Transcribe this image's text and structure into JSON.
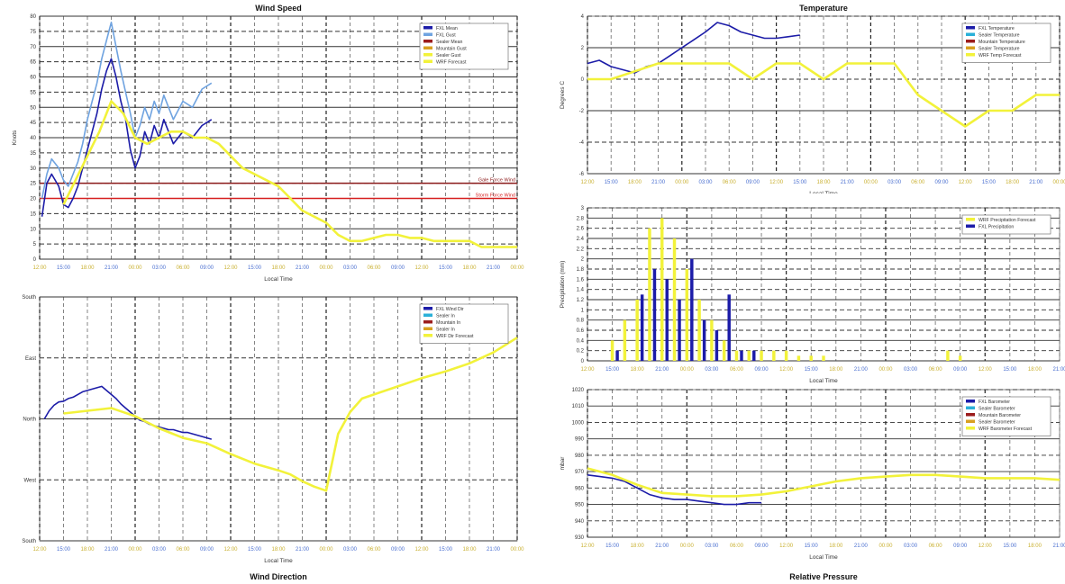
{
  "chart_data": [
    {
      "id": "wind_speed",
      "type": "line",
      "title": "Wind Speed",
      "xlabel": "Local Time",
      "ylabel": "Knots",
      "ylim": [
        0,
        80
      ],
      "yticks": [
        0,
        5,
        10,
        15,
        20,
        25,
        30,
        35,
        40,
        45,
        50,
        55,
        60,
        65,
        70,
        75,
        80
      ],
      "xtick_labels": [
        "12:00",
        "15:00",
        "18:00",
        "21:00",
        "00:00",
        "03:00",
        "06:00",
        "09:00",
        "12:00",
        "15:00",
        "18:00",
        "21:00",
        "00:00",
        "03:00",
        "06:00",
        "09:00",
        "12:00",
        "15:00",
        "18:00",
        "21:00",
        "00:00"
      ],
      "x_range": [
        0,
        20
      ],
      "legend": [
        "FXL Mean",
        "FXL Gust",
        "Sealer Mean",
        "Mountain Gust",
        "Sealer Gust",
        "WRF Forecast"
      ],
      "legend_position": "top-right",
      "thresholds": [
        {
          "label": "Gale Force Wind",
          "value": 25,
          "color": "#8b1a1a"
        },
        {
          "label": "Storm Force Wind",
          "value": 20,
          "color": "#d62020"
        }
      ],
      "series": [
        {
          "name": "FXL Gust",
          "color": "#6fa3e0",
          "x": [
            0.1,
            0.3,
            0.5,
            0.8,
            1.0,
            1.2,
            1.4,
            1.6,
            1.8,
            2.0,
            2.2,
            2.4,
            2.6,
            2.8,
            3.0,
            3.2,
            3.4,
            3.6,
            3.8,
            4.0,
            4.2,
            4.4,
            4.6,
            4.8,
            5.0,
            5.2,
            5.4,
            5.6,
            6.0,
            6.4,
            6.8,
            7.2
          ],
          "y": [
            20,
            28,
            33,
            30,
            26,
            24,
            28,
            32,
            38,
            46,
            52,
            58,
            66,
            72,
            78,
            70,
            62,
            55,
            48,
            40,
            44,
            50,
            46,
            52,
            48,
            54,
            50,
            46,
            52,
            50,
            56,
            58
          ]
        },
        {
          "name": "FXL Mean",
          "color": "#1c1ca8",
          "x": [
            0.1,
            0.3,
            0.5,
            0.8,
            1.0,
            1.2,
            1.4,
            1.6,
            1.8,
            2.0,
            2.2,
            2.4,
            2.6,
            2.8,
            3.0,
            3.2,
            3.4,
            3.6,
            3.8,
            4.0,
            4.2,
            4.4,
            4.6,
            4.8,
            5.0,
            5.2,
            5.4,
            5.6,
            6.0,
            6.4,
            6.8,
            7.2
          ],
          "y": [
            14,
            25,
            28,
            24,
            18,
            17,
            20,
            24,
            30,
            36,
            42,
            48,
            56,
            62,
            66,
            60,
            52,
            46,
            36,
            30,
            34,
            42,
            38,
            44,
            40,
            46,
            42,
            38,
            42,
            40,
            44,
            46
          ]
        },
        {
          "name": "WRF Forecast",
          "color": "#f2f23a",
          "x": [
            1.0,
            1.5,
            2.0,
            2.5,
            3.0,
            3.5,
            4.0,
            4.5,
            5.0,
            5.5,
            6.0,
            6.5,
            7.0,
            7.5,
            8.0,
            8.5,
            9.0,
            9.5,
            10.0,
            10.5,
            11.0,
            11.5,
            12.0,
            12.5,
            13.0,
            13.5,
            14.0,
            14.5,
            15.0,
            15.5,
            16.0,
            16.5,
            17.0,
            17.5,
            18.0,
            18.5,
            19.0,
            19.5,
            20.0
          ],
          "y": [
            18,
            26,
            34,
            42,
            52,
            48,
            40,
            38,
            40,
            42,
            42,
            40,
            40,
            38,
            34,
            30,
            28,
            26,
            24,
            20,
            16,
            14,
            12,
            8,
            6,
            6,
            7,
            8,
            8,
            7,
            7,
            6,
            6,
            6,
            6,
            4,
            4,
            4,
            4
          ]
        }
      ]
    },
    {
      "id": "wind_direction",
      "type": "line",
      "title": "Wind Direction",
      "xlabel": "Local Time",
      "ylim": [
        0,
        360
      ],
      "ytick_labels": [
        "South",
        "West",
        "North",
        "East",
        "South"
      ],
      "ytick_values": [
        0,
        90,
        180,
        270,
        360
      ],
      "xtick_labels": [
        "12:00",
        "15:00",
        "18:00",
        "21:00",
        "00:00",
        "03:00",
        "06:00",
        "09:00",
        "12:00",
        "15:00",
        "18:00",
        "21:00",
        "00:00",
        "03:00",
        "06:00",
        "09:00",
        "12:00",
        "15:00",
        "18:00",
        "21:00",
        "00:00"
      ],
      "x_range": [
        0,
        20
      ],
      "legend": [
        "FXL Wind Dir",
        "Sealer In",
        "Mountain In",
        "Sealer In",
        "WRF Dir Forecast"
      ],
      "legend_position": "top-right",
      "series": [
        {
          "name": "FXL Wind Dir",
          "color": "#1c1ca8",
          "x": [
            0.2,
            0.4,
            0.6,
            0.8,
            1.0,
            1.2,
            1.4,
            1.6,
            1.8,
            2.0,
            2.2,
            2.4,
            2.6,
            2.8,
            3.0,
            3.2,
            3.4,
            3.6,
            3.8,
            4.0,
            4.2,
            4.4,
            4.6,
            4.8,
            5.0,
            5.2,
            5.4,
            5.6,
            5.8,
            6.0,
            6.2,
            6.4,
            6.6,
            6.8,
            7.0,
            7.2
          ],
          "y": [
            180,
            192,
            200,
            205,
            206,
            210,
            212,
            216,
            220,
            222,
            224,
            226,
            228,
            222,
            216,
            210,
            202,
            196,
            190,
            184,
            178,
            176,
            172,
            170,
            168,
            166,
            164,
            164,
            162,
            160,
            160,
            158,
            156,
            154,
            152,
            150
          ]
        },
        {
          "name": "WRF Dir Forecast",
          "color": "#f2f23a",
          "x": [
            1.0,
            2.0,
            3.0,
            4.0,
            5.0,
            6.0,
            7.0,
            8.0,
            9.0,
            10.0,
            10.5,
            11.0,
            11.5,
            12.0,
            12.5,
            13.0,
            13.5,
            14.0,
            15.0,
            16.0,
            17.0,
            18.0,
            19.0,
            20.0
          ],
          "y": [
            188,
            192,
            196,
            184,
            166,
            152,
            144,
            128,
            114,
            104,
            98,
            88,
            80,
            74,
            158,
            190,
            210,
            216,
            228,
            240,
            250,
            262,
            278,
            300
          ]
        }
      ]
    },
    {
      "id": "temperature",
      "type": "line",
      "title": "Temperature",
      "xlabel": "Local Time",
      "ylabel": "Degrees C",
      "ylim": [
        -6,
        4
      ],
      "yticks": [
        -6,
        -4,
        -2,
        0,
        2,
        4
      ],
      "xtick_labels": [
        "12:00",
        "15:00",
        "18:00",
        "21:00",
        "00:00",
        "03:00",
        "06:00",
        "09:00",
        "12:00",
        "15:00",
        "18:00",
        "21:00",
        "00:00",
        "03:00",
        "06:00",
        "09:00",
        "12:00",
        "15:00",
        "18:00",
        "21:00",
        "00:00"
      ],
      "x_range": [
        0,
        20
      ],
      "legend": [
        "FXL Temperature",
        "Sealer Temperature",
        "Mountain Temperature",
        "Sealer Temperature",
        "WRF Temp Forecast"
      ],
      "legend_position": "top-right",
      "series": [
        {
          "name": "FXL Temperature",
          "color": "#1c1ca8",
          "x": [
            0.0,
            0.5,
            1.0,
            1.5,
            2.0,
            2.5,
            3.0,
            3.5,
            4.0,
            4.5,
            5.0,
            5.5,
            6.0,
            6.5,
            7.0,
            7.5,
            8.0,
            8.5,
            9.0
          ],
          "y": [
            1.0,
            1.2,
            0.8,
            0.6,
            0.4,
            0.8,
            1.0,
            1.5,
            2.0,
            2.5,
            3.0,
            3.6,
            3.4,
            3.0,
            2.8,
            2.6,
            2.6,
            2.7,
            2.8
          ]
        },
        {
          "name": "WRF Temp Forecast",
          "color": "#f2f23a",
          "x": [
            0.0,
            1.0,
            2.0,
            3.0,
            4.0,
            5.0,
            6.0,
            7.0,
            8.0,
            9.0,
            10.0,
            11.0,
            12.0,
            13.0,
            14.0,
            15.0,
            16.0,
            17.0,
            18.0,
            19.0,
            20.0
          ],
          "y": [
            0.0,
            0.0,
            0.5,
            1.0,
            1.0,
            1.0,
            1.0,
            0.0,
            1.0,
            1.0,
            0.0,
            1.0,
            1.0,
            1.0,
            -1.0,
            -2.0,
            -3.0,
            -2.0,
            -2.0,
            -1.0,
            -1.0
          ]
        }
      ]
    },
    {
      "id": "precipitation",
      "type": "bar",
      "xlabel": "Local Time",
      "ylabel": "Precipitation (mm)",
      "ylim": [
        0,
        3.0
      ],
      "yticks": [
        0,
        0.2,
        0.4,
        0.6,
        0.8,
        1.0,
        1.2,
        1.4,
        1.6,
        1.8,
        2.0,
        2.2,
        2.4,
        2.6,
        2.8,
        3.0
      ],
      "xtick_labels": [
        "12:00",
        "15:00",
        "18:00",
        "21:00",
        "00:00",
        "03:00",
        "06:00",
        "09:00",
        "12:00",
        "15:00",
        "18:00",
        "21:00",
        "00:00",
        "03:00",
        "06:00",
        "09:00",
        "12:00",
        "15:00",
        "18:00",
        "21:00"
      ],
      "x_range": [
        0,
        19
      ],
      "legend": [
        "WRF Precipitation Forecast",
        "FXL Precipitation"
      ],
      "legend_position": "top-right",
      "series": [
        {
          "name": "WRF Precipitation Forecast",
          "color": "#f2f23a",
          "x": [
            1.0,
            1.5,
            2.0,
            2.5,
            3.0,
            3.5,
            4.0,
            4.5,
            5.0,
            5.5,
            6.0,
            6.5,
            7.0,
            7.5,
            8.0,
            8.5,
            9.0,
            9.5,
            14.5,
            15.0
          ],
          "y": [
            0.4,
            0.8,
            1.2,
            2.6,
            2.8,
            2.4,
            1.8,
            1.2,
            0.8,
            0.4,
            0.2,
            0.2,
            0.2,
            0.2,
            0.2,
            0.1,
            0.1,
            0.1,
            0.2,
            0.1
          ]
        },
        {
          "name": "FXL Precipitation",
          "color": "#1c1ca8",
          "x": [
            1.2,
            2.2,
            2.7,
            3.2,
            3.7,
            4.2,
            4.7,
            5.2,
            5.7,
            6.2,
            6.7
          ],
          "y": [
            0.2,
            1.3,
            1.8,
            1.6,
            1.2,
            2.0,
            0.8,
            0.6,
            1.3,
            0.2,
            0.2
          ]
        }
      ]
    },
    {
      "id": "pressure",
      "type": "line",
      "title": "Relative Pressure",
      "xlabel": "Local Time",
      "ylabel": "mbar",
      "ylim": [
        930,
        1020
      ],
      "yticks": [
        930,
        940,
        950,
        960,
        970,
        980,
        990,
        1000,
        1010,
        1020
      ],
      "xtick_labels": [
        "12:00",
        "15:00",
        "18:00",
        "21:00",
        "00:00",
        "03:00",
        "06:00",
        "09:00",
        "12:00",
        "15:00",
        "18:00",
        "21:00",
        "00:00",
        "03:00",
        "06:00",
        "09:00",
        "12:00",
        "15:00",
        "18:00",
        "21:00"
      ],
      "x_range": [
        0,
        19
      ],
      "legend": [
        "FXL Barometer",
        "Sealer Barometer",
        "Mountain Barometer",
        "Sealer Barometer",
        "WRF Barometer Forecast"
      ],
      "legend_position": "top-right",
      "series": [
        {
          "name": "FXL Barometer",
          "color": "#1c1ca8",
          "x": [
            0.0,
            0.5,
            1.0,
            1.5,
            2.0,
            2.5,
            3.0,
            3.5,
            4.0,
            4.5,
            5.0,
            5.5,
            6.0,
            6.5,
            7.0
          ],
          "y": [
            968,
            967,
            966,
            964,
            960,
            956,
            954,
            953,
            953,
            952,
            951,
            950,
            950,
            951,
            951
          ]
        },
        {
          "name": "WRF Barometer Forecast",
          "color": "#f2f23a",
          "x": [
            0.0,
            1.0,
            2.0,
            3.0,
            4.0,
            5.0,
            6.0,
            7.0,
            8.0,
            9.0,
            10.0,
            11.0,
            12.0,
            13.0,
            14.0,
            15.0,
            16.0,
            17.0,
            18.0,
            19.0
          ],
          "y": [
            972,
            968,
            962,
            957,
            956,
            955,
            955,
            956,
            958,
            961,
            964,
            966,
            967,
            968,
            968,
            967,
            966,
            966,
            966,
            965
          ]
        }
      ]
    }
  ]
}
